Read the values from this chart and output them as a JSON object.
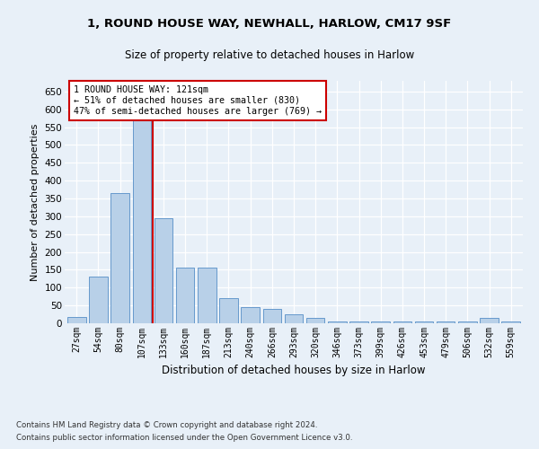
{
  "title1": "1, ROUND HOUSE WAY, NEWHALL, HARLOW, CM17 9SF",
  "title2": "Size of property relative to detached houses in Harlow",
  "xlabel": "Distribution of detached houses by size in Harlow",
  "ylabel": "Number of detached properties",
  "categories": [
    "27sqm",
    "54sqm",
    "80sqm",
    "107sqm",
    "133sqm",
    "160sqm",
    "187sqm",
    "213sqm",
    "240sqm",
    "266sqm",
    "293sqm",
    "320sqm",
    "346sqm",
    "373sqm",
    "399sqm",
    "426sqm",
    "453sqm",
    "479sqm",
    "506sqm",
    "532sqm",
    "559sqm"
  ],
  "bar_heights": [
    18,
    130,
    365,
    575,
    295,
    155,
    155,
    70,
    45,
    40,
    25,
    15,
    5,
    5,
    5,
    5,
    5,
    5,
    5,
    15,
    5
  ],
  "bar_color": "#b8d0e8",
  "bar_edge_color": "#6699cc",
  "vline_x": 3.5,
  "annotation_line1": "1 ROUND HOUSE WAY: 121sqm",
  "annotation_line2": "← 51% of detached houses are smaller (830)",
  "annotation_line3": "47% of semi-detached houses are larger (769) →",
  "vline_color": "#cc0000",
  "ylim": [
    0,
    680
  ],
  "yticks": [
    0,
    50,
    100,
    150,
    200,
    250,
    300,
    350,
    400,
    450,
    500,
    550,
    600,
    650
  ],
  "footer1": "Contains HM Land Registry data © Crown copyright and database right 2024.",
  "footer2": "Contains public sector information licensed under the Open Government Licence v3.0.",
  "bg_color": "#e8f0f8",
  "plot_bg_color": "#e8f0f8"
}
